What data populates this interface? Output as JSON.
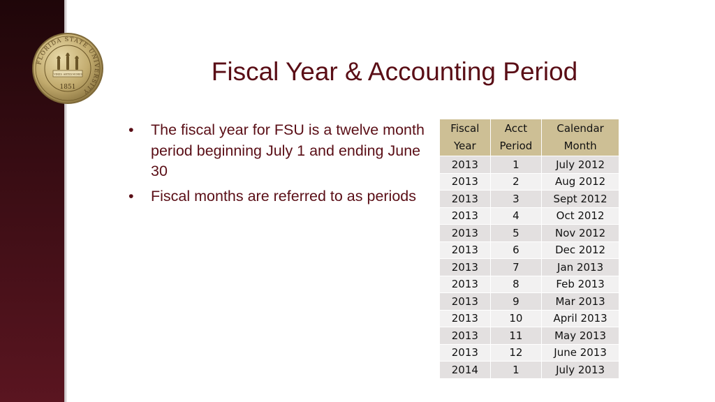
{
  "slide": {
    "title": "Fiscal Year & Accounting Period",
    "bullets": [
      "The fiscal year for FSU is a twelve month period beginning July 1 and ending June 30",
      "Fiscal months are referred to as periods"
    ]
  },
  "seal": {
    "ring_text": "FLORIDA STATE UNIVERSITY",
    "year": "1851",
    "banners": [
      "VIRES",
      "ARTES",
      "MORES"
    ]
  },
  "table": {
    "headers": [
      [
        "Fiscal",
        "Year"
      ],
      [
        "Acct",
        "Period"
      ],
      [
        "Calendar",
        "Month"
      ]
    ],
    "rows": [
      [
        "2013",
        "1",
        "July 2012"
      ],
      [
        "2013",
        "2",
        "Aug 2012"
      ],
      [
        "2013",
        "3",
        "Sept 2012"
      ],
      [
        "2013",
        "4",
        "Oct 2012"
      ],
      [
        "2013",
        "5",
        "Nov 2012"
      ],
      [
        "2013",
        "6",
        "Dec 2012"
      ],
      [
        "2013",
        "7",
        "Jan 2013"
      ],
      [
        "2013",
        "8",
        "Feb 2013"
      ],
      [
        "2013",
        "9",
        "Mar 2013"
      ],
      [
        "2013",
        "10",
        "April 2013"
      ],
      [
        "2013",
        "11",
        "May 2013"
      ],
      [
        "2013",
        "12",
        "June 2013"
      ],
      [
        "2014",
        "1",
        "July 2013"
      ]
    ]
  },
  "colors": {
    "title": "#5a0e16",
    "sidebar": "#3a0d14",
    "table_header": "#cdbf95",
    "row_odd": "#e3e0e0",
    "row_even": "#f2f1f1"
  }
}
